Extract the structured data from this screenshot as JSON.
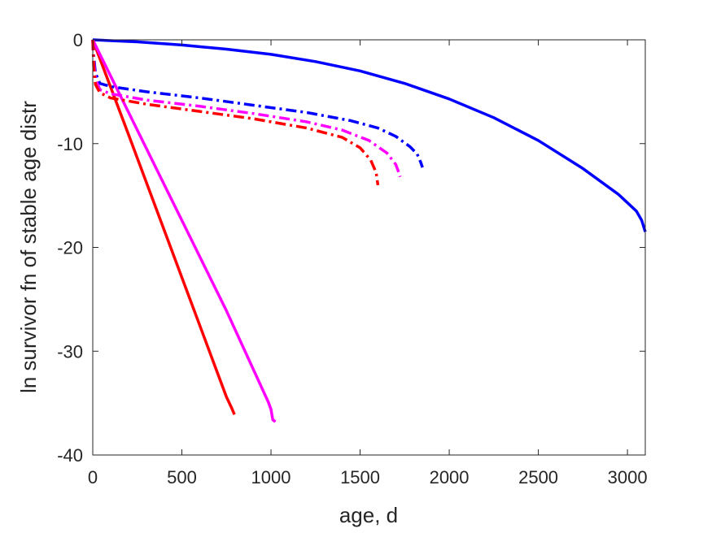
{
  "chart_data": {
    "type": "line",
    "title": "",
    "xlabel": "age, d",
    "ylabel": "ln survivor fn of stable age distr",
    "xlim": [
      0,
      3100
    ],
    "ylim": [
      -40,
      0
    ],
    "xticks": [
      0,
      500,
      1000,
      1500,
      2000,
      2500,
      3000
    ],
    "yticks": [
      0,
      -10,
      -20,
      -30,
      -40
    ],
    "xtick_labels": [
      "0",
      "500",
      "1000",
      "1500",
      "2000",
      "2500",
      "3000"
    ],
    "ytick_labels": [
      "0",
      "-10",
      "-20",
      "-30",
      "-40"
    ],
    "grid": false,
    "legend": "none",
    "series": [
      {
        "color": "#0000ff",
        "style": "solid",
        "x": [
          0,
          250,
          500,
          750,
          1000,
          1250,
          1500,
          1750,
          2000,
          2250,
          2500,
          2750,
          2950,
          3050,
          3080,
          3100
        ],
        "y": [
          0,
          -0.2,
          -0.5,
          -0.9,
          -1.4,
          -2.1,
          -3.0,
          -4.2,
          -5.7,
          -7.5,
          -9.7,
          -12.4,
          -14.9,
          -16.5,
          -17.4,
          -18.5
        ]
      },
      {
        "color": "#ff0000",
        "style": "solid",
        "x": [
          0,
          200,
          400,
          600,
          750,
          780,
          795
        ],
        "y": [
          0,
          -9.1,
          -18.3,
          -27.5,
          -34.4,
          -35.5,
          -36.1
        ]
      },
      {
        "color": "#ff00ff",
        "style": "solid",
        "x": [
          0,
          250,
          500,
          750,
          985,
          1000,
          1010,
          1025
        ],
        "y": [
          0,
          -8.7,
          -17.4,
          -26.1,
          -34.9,
          -35.6,
          -36.6,
          -36.8
        ]
      },
      {
        "color": "#0000ff",
        "style": "dashdot",
        "x": [
          0,
          5,
          15,
          40,
          100,
          300,
          600,
          900,
          1200,
          1450,
          1600,
          1700,
          1780,
          1820,
          1840,
          1850
        ],
        "y": [
          0,
          -1.5,
          -3.2,
          -4.2,
          -4.5,
          -5.0,
          -5.6,
          -6.3,
          -7.0,
          -7.8,
          -8.5,
          -9.3,
          -10.3,
          -11.0,
          -11.8,
          -12.3
        ]
      },
      {
        "color": "#ff00ff",
        "style": "dashdot",
        "x": [
          0,
          5,
          15,
          40,
          100,
          300,
          600,
          900,
          1200,
          1400,
          1550,
          1650,
          1700,
          1715,
          1725
        ],
        "y": [
          0,
          -2.0,
          -3.8,
          -4.8,
          -5.2,
          -5.8,
          -6.4,
          -7.1,
          -7.9,
          -8.7,
          -9.7,
          -10.9,
          -12.0,
          -12.7,
          -13.2
        ]
      },
      {
        "color": "#ff0000",
        "style": "dashdot",
        "x": [
          0,
          5,
          15,
          40,
          100,
          300,
          600,
          900,
          1200,
          1400,
          1500,
          1560,
          1590,
          1600
        ],
        "y": [
          0,
          -2.5,
          -4.3,
          -5.1,
          -5.6,
          -6.2,
          -6.9,
          -7.6,
          -8.5,
          -9.4,
          -10.4,
          -11.6,
          -12.8,
          -14.0
        ]
      }
    ]
  }
}
